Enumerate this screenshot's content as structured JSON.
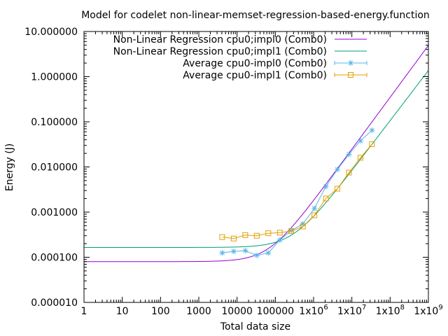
{
  "chart_data": {
    "type": "line",
    "title": "Model for codelet non-linear-memset-regression-based-energy.function",
    "xlabel": "Total data size",
    "ylabel": "Energy (J)",
    "xscale": "log",
    "yscale": "log",
    "xlim": [
      1,
      1000000000
    ],
    "ylim": [
      1e-05,
      10
    ],
    "grid": false,
    "legend_position": "top-right",
    "x_ticks": [
      {
        "value": 1,
        "label": "1"
      },
      {
        "value": 10,
        "label": "10"
      },
      {
        "value": 100,
        "label": "100"
      },
      {
        "value": 1000,
        "label": "1000"
      },
      {
        "value": 10000,
        "label": "10000"
      },
      {
        "value": 100000,
        "label": "100000"
      },
      {
        "value": 1000000,
        "label": "1x10",
        "exp": "6"
      },
      {
        "value": 10000000,
        "label": "1x10",
        "exp": "7"
      },
      {
        "value": 100000000,
        "label": "1x10",
        "exp": "8"
      },
      {
        "value": 1000000000,
        "label": "1x10",
        "exp": "9"
      }
    ],
    "y_ticks": [
      {
        "value": 1e-05,
        "label": "0.000010"
      },
      {
        "value": 0.0001,
        "label": "0.000100"
      },
      {
        "value": 0.001,
        "label": "0.001000"
      },
      {
        "value": 0.01,
        "label": "0.010000"
      },
      {
        "value": 0.1,
        "label": "0.100000"
      },
      {
        "value": 1,
        "label": "1.000000"
      },
      {
        "value": 10,
        "label": "10.000000"
      }
    ],
    "series": [
      {
        "name": "Non-Linear Regression cpu0;impl0 (Comb0)",
        "kind": "line",
        "color": "#9400d3",
        "model": {
          "a": 8e-05,
          "b": 2.2e-10,
          "c": 1.15
        }
      },
      {
        "name": "Non-Linear Regression cpu0;impl1 (Comb0)",
        "kind": "line",
        "color": "#009e73",
        "model": {
          "a": 0.000165,
          "b": 1.4e-10,
          "c": 1.11
        }
      },
      {
        "name": "Average cpu0-impl0 (Comb0)",
        "kind": "points",
        "marker": "star",
        "color": "#56b4e9",
        "x": [
          4096,
          8192,
          16384,
          32768,
          65536,
          131072,
          262144,
          524288,
          1048576,
          2097152,
          4194304,
          8388608,
          16777216,
          33554432
        ],
        "y": [
          0.000125,
          0.000135,
          0.00014,
          0.00011,
          0.000125,
          0.00024,
          0.00039,
          0.00055,
          0.0012,
          0.0037,
          0.0088,
          0.019,
          0.038,
          0.065
        ]
      },
      {
        "name": "Average cpu0-impl1 (Comb0)",
        "kind": "points",
        "marker": "square",
        "color": "#e69f00",
        "x": [
          4096,
          8192,
          16384,
          32768,
          65536,
          131072,
          262144,
          524288,
          1048576,
          2097152,
          4194304,
          8388608,
          16777216,
          33554432
        ],
        "y": [
          0.00028,
          0.00026,
          0.00031,
          0.0003,
          0.00034,
          0.00035,
          0.00038,
          0.00048,
          0.00085,
          0.002,
          0.0033,
          0.0075,
          0.016,
          0.032
        ]
      }
    ]
  }
}
